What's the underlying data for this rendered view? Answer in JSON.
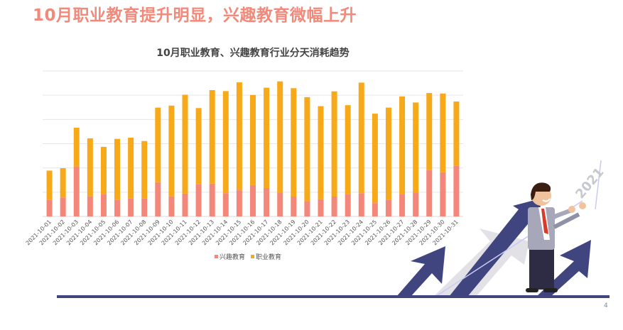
{
  "header": {
    "title": "10月职业教育提升明显，兴趣教育微幅上升"
  },
  "page_number": "4",
  "illustration": {
    "badge_text": "2021"
  },
  "chart_data": {
    "type": "bar",
    "stacked": true,
    "title": "10月职业教育、兴趣教育行业分天消耗趋势",
    "xlabel": "",
    "ylabel": "",
    "ylim": [
      0,
      6
    ],
    "y_tick_labels_shown": false,
    "grid": true,
    "legend_position": "bottom",
    "categories": [
      "2021-10-01",
      "2021-10-02",
      "2021-10-03",
      "2021-10-04",
      "2021-10-05",
      "2021-10-06",
      "2021-10-07",
      "2021-10-08",
      "2021-10-09",
      "2021-10-10",
      "2021-10-11",
      "2021-10-12",
      "2021-10-13",
      "2021-10-14",
      "2021-10-15",
      "2021-10-16",
      "2021-10-17",
      "2021-10-18",
      "2021-10-19",
      "2021-10-20",
      "2021-10-21",
      "2021-10-22",
      "2021-10-23",
      "2021-10-24",
      "2021-10-25",
      "2021-10-26",
      "2021-10-27",
      "2021-10-28",
      "2021-10-29",
      "2021-10-30",
      "2021-10-31"
    ],
    "series": [
      {
        "name": "兴趣教育",
        "color": "#f4867a",
        "values": [
          0.68,
          0.78,
          2.06,
          0.83,
          0.91,
          0.68,
          0.74,
          0.74,
          1.41,
          0.83,
          0.94,
          1.32,
          1.35,
          0.96,
          1.08,
          1.29,
          1.17,
          0.99,
          0.82,
          0.64,
          0.71,
          0.82,
          0.91,
          0.96,
          0.55,
          0.68,
          0.93,
          0.99,
          1.91,
          1.82,
          2.08
        ]
      },
      {
        "name": "职业教育",
        "color": "#f7a919",
        "values": [
          1.21,
          1.21,
          1.6,
          2.39,
          1.96,
          2.52,
          2.51,
          2.37,
          3.08,
          3.74,
          4.08,
          3.15,
          3.86,
          4.21,
          4.45,
          3.72,
          4.14,
          4.58,
          4.47,
          4.28,
          3.84,
          4.34,
          3.68,
          4.56,
          3.69,
          3.81,
          4.02,
          3.71,
          3.18,
          3.25,
          2.66
        ]
      }
    ]
  }
}
